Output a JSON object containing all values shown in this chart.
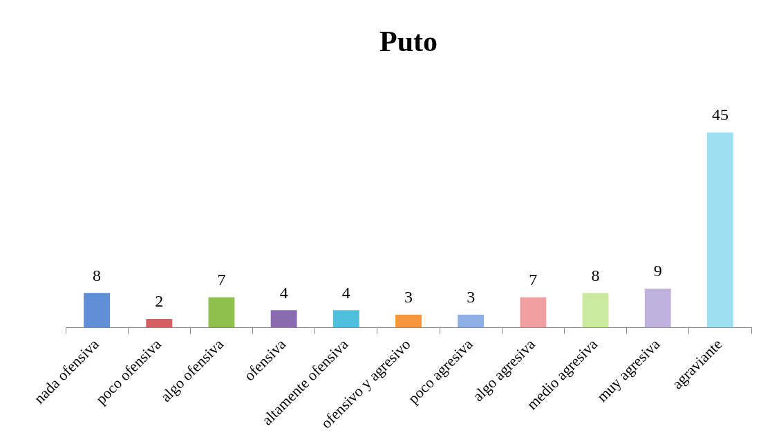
{
  "chart_data": {
    "type": "bar",
    "title": "Puto",
    "categories": [
      "nada ofensiva",
      "poco ofensiva",
      "algo ofensiva",
      "ofensiva",
      "altamente ofensiva",
      "ofensivo y agresivo",
      "poco agresiva",
      "algo agresiva",
      "medio agresiva",
      "muy agresiva",
      "agraviante"
    ],
    "values": [
      8,
      2,
      7,
      4,
      4,
      3,
      3,
      7,
      8,
      9,
      45
    ],
    "colors": [
      "#5f8fd6",
      "#d65f5f",
      "#8fbf4f",
      "#8a6ab0",
      "#4ec0de",
      "#f7963e",
      "#8eaee6",
      "#f0a0a0",
      "#cbeaa0",
      "#c0b0dc",
      "#9edff0"
    ],
    "tick_labels": "x",
    "data_labels": true,
    "grid": false,
    "legend": false
  }
}
